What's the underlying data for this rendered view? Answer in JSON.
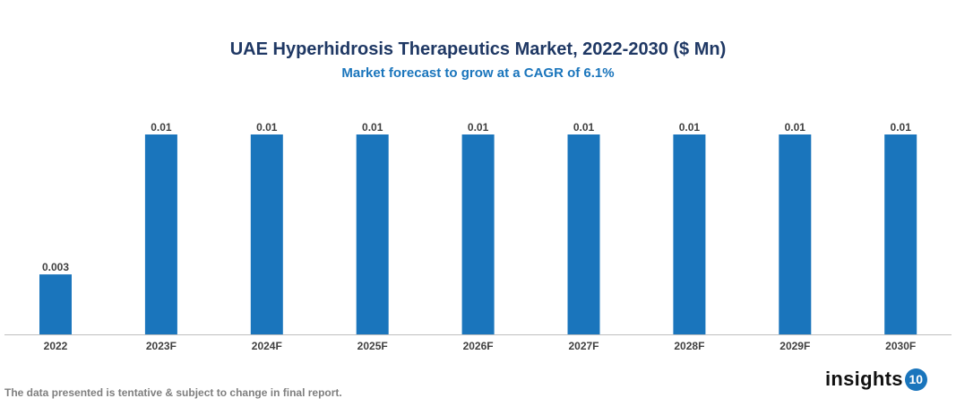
{
  "chart_data": {
    "type": "bar",
    "title": "UAE Hyperhidrosis Therapeutics Market, 2022-2030 ($ Mn)",
    "subtitle": "Market forecast to grow at a CAGR of 6.1%",
    "categories": [
      "2022",
      "2023F",
      "2024F",
      "2025F",
      "2026F",
      "2027F",
      "2028F",
      "2029F",
      "2030F"
    ],
    "values": [
      0.003,
      0.01,
      0.01,
      0.01,
      0.01,
      0.01,
      0.01,
      0.01,
      0.01
    ],
    "data_labels": [
      "0.003",
      "0.01",
      "0.01",
      "0.01",
      "0.01",
      "0.01",
      "0.01",
      "0.01",
      "0.01"
    ],
    "xlabel": "",
    "ylabel": "",
    "ylim": [
      0,
      0.01
    ],
    "grid": false,
    "bar_color": "#1a75bc"
  },
  "footnote": "The data presented is tentative & subject to change in final report.",
  "logo": {
    "text": "insights",
    "badge": "10"
  }
}
